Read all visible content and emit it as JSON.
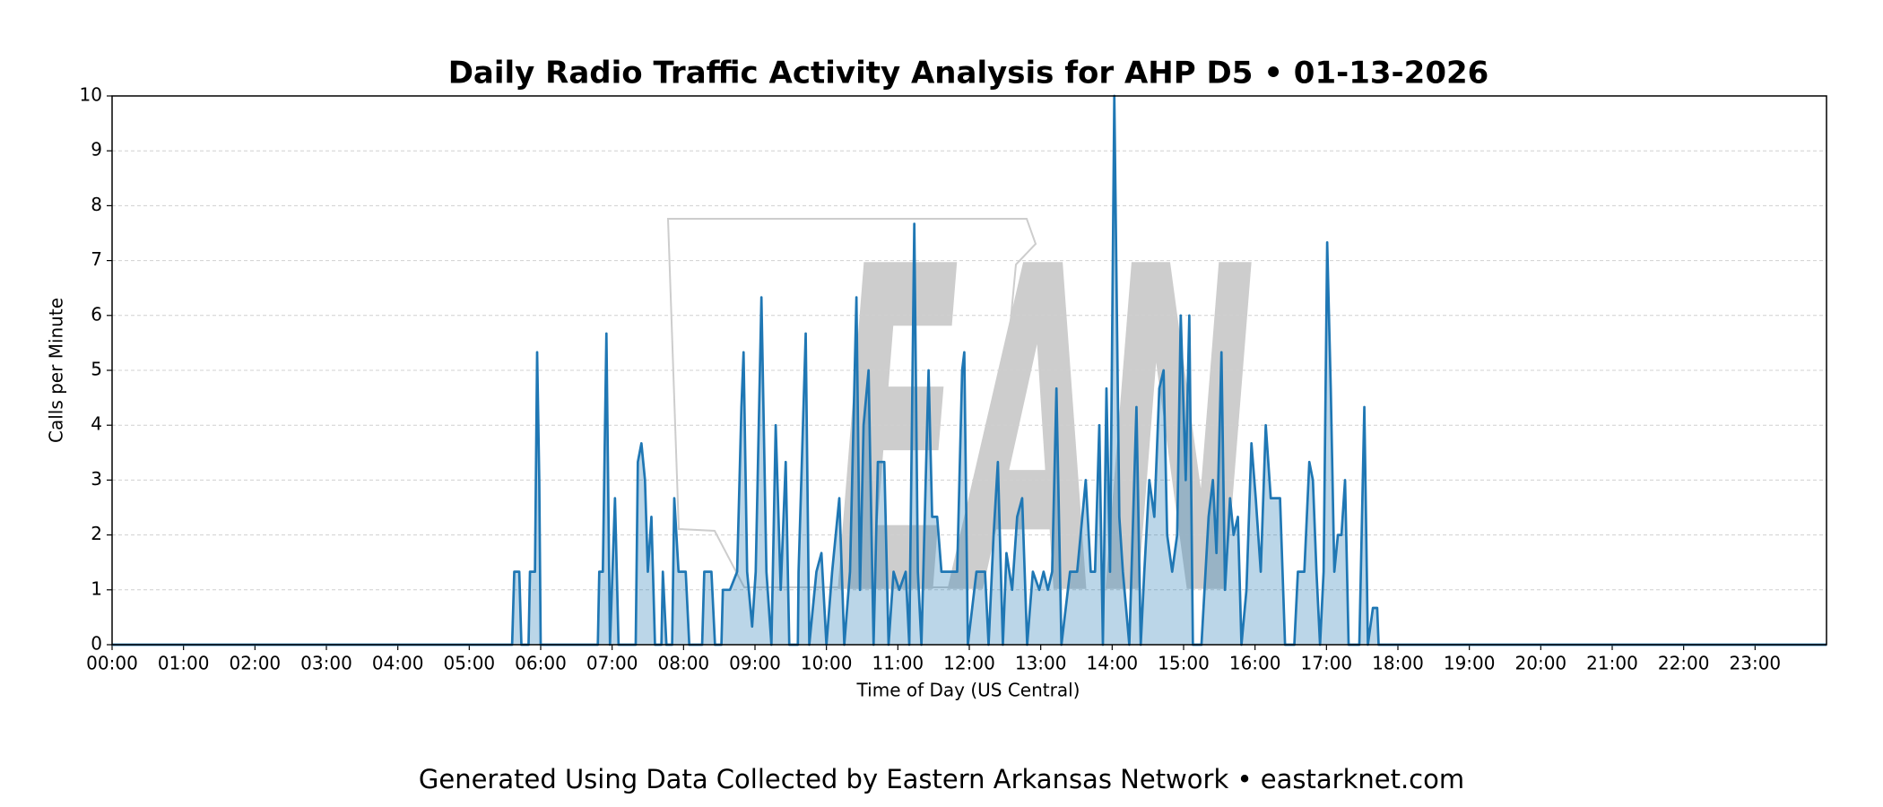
{
  "chart_data": {
    "type": "area",
    "title": "Daily Radio Traffic Activity Analysis for AHP D5 • 01-13-2026",
    "xlabel": "Time of Day (US Central)",
    "ylabel": "Calls per Minute",
    "footer": "Generated Using Data Collected by Eastern Arkansas Network • eastarknet.com",
    "watermark": "EAN",
    "color": "#1f77b4",
    "grid": true,
    "xlim": [
      0,
      24
    ],
    "ylim": [
      0,
      10
    ],
    "yticks": [
      0,
      1,
      2,
      3,
      4,
      5,
      6,
      7,
      8,
      9,
      10
    ],
    "xticks": [
      {
        "value": 0,
        "label": "00:00"
      },
      {
        "value": 1,
        "label": "01:00"
      },
      {
        "value": 2,
        "label": "02:00"
      },
      {
        "value": 3,
        "label": "03:00"
      },
      {
        "value": 4,
        "label": "04:00"
      },
      {
        "value": 5,
        "label": "05:00"
      },
      {
        "value": 6,
        "label": "06:00"
      },
      {
        "value": 7,
        "label": "07:00"
      },
      {
        "value": 8,
        "label": "08:00"
      },
      {
        "value": 9,
        "label": "09:00"
      },
      {
        "value": 10,
        "label": "10:00"
      },
      {
        "value": 11,
        "label": "11:00"
      },
      {
        "value": 12,
        "label": "12:00"
      },
      {
        "value": 13,
        "label": "13:00"
      },
      {
        "value": 14,
        "label": "14:00"
      },
      {
        "value": 15,
        "label": "15:00"
      },
      {
        "value": 16,
        "label": "16:00"
      },
      {
        "value": 17,
        "label": "17:00"
      },
      {
        "value": 18,
        "label": "18:00"
      },
      {
        "value": 19,
        "label": "19:00"
      },
      {
        "value": 20,
        "label": "20:00"
      },
      {
        "value": 21,
        "label": "21:00"
      },
      {
        "value": 22,
        "label": "22:00"
      },
      {
        "value": 23,
        "label": "23:00"
      }
    ],
    "x": [
      0,
      5.6,
      5.63,
      5.7,
      5.73,
      5.83,
      5.85,
      5.92,
      5.95,
      5.98,
      6.0,
      6.8,
      6.82,
      6.87,
      6.92,
      6.97,
      7.04,
      7.09,
      7.33,
      7.36,
      7.41,
      7.46,
      7.5,
      7.55,
      7.6,
      7.69,
      7.71,
      7.76,
      7.84,
      7.87,
      7.93,
      7.98,
      8.03,
      8.08,
      8.26,
      8.29,
      8.39,
      8.44,
      8.53,
      8.55,
      8.65,
      8.75,
      8.81,
      8.84,
      8.89,
      8.96,
      9.01,
      9.09,
      9.16,
      9.23,
      9.29,
      9.36,
      9.43,
      9.48,
      9.6,
      9.61,
      9.71,
      9.76,
      9.86,
      9.93,
      10.0,
      10.08,
      10.18,
      10.25,
      10.33,
      10.42,
      10.47,
      10.52,
      10.59,
      10.66,
      10.72,
      10.81,
      10.87,
      10.94,
      11.02,
      11.11,
      11.16,
      11.23,
      11.28,
      11.33,
      11.43,
      11.48,
      11.55,
      11.61,
      11.75,
      11.83,
      11.9,
      11.93,
      11.98,
      12.1,
      12.22,
      12.27,
      12.34,
      12.4,
      12.47,
      12.52,
      12.6,
      12.67,
      12.74,
      12.81,
      12.89,
      12.98,
      13.04,
      13.1,
      13.16,
      13.22,
      13.29,
      13.41,
      13.51,
      13.63,
      13.7,
      13.76,
      13.82,
      13.87,
      13.92,
      13.97,
      14.03,
      14.1,
      14.15,
      14.24,
      14.34,
      14.4,
      14.45,
      14.52,
      14.59,
      14.66,
      14.72,
      14.77,
      14.84,
      14.91,
      14.96,
      15.03,
      15.08,
      15.13,
      15.25,
      15.35,
      15.41,
      15.46,
      15.53,
      15.58,
      15.65,
      15.7,
      15.76,
      15.81,
      15.88,
      15.95,
      16.01,
      16.08,
      16.15,
      16.22,
      16.29,
      16.35,
      16.42,
      16.55,
      16.6,
      16.69,
      16.76,
      16.81,
      16.86,
      16.91,
      16.96,
      17.01,
      17.06,
      17.11,
      17.16,
      17.21,
      17.26,
      17.31,
      17.46,
      17.53,
      17.58,
      17.65,
      17.71,
      17.73,
      24
    ],
    "values": [
      0,
      0,
      1.33,
      1.33,
      0,
      0,
      1.33,
      1.33,
      5.33,
      3,
      0,
      0,
      1.33,
      1.33,
      5.67,
      0,
      2.67,
      0,
      0,
      3.33,
      3.67,
      3.0,
      1.33,
      2.33,
      0,
      0,
      1.33,
      0,
      0,
      2.67,
      1.33,
      1.33,
      1.33,
      0,
      0,
      1.33,
      1.33,
      0,
      0,
      1.0,
      1.0,
      1.33,
      4.33,
      5.33,
      1.33,
      0.33,
      1.33,
      6.33,
      1.33,
      0,
      4.0,
      1.0,
      3.33,
      0,
      0,
      1.33,
      5.67,
      0,
      1.33,
      1.67,
      0,
      1.33,
      2.67,
      0,
      1.33,
      6.33,
      1.0,
      4.0,
      5.0,
      0,
      3.33,
      3.33,
      0,
      1.33,
      1.0,
      1.33,
      0,
      7.67,
      1.33,
      0,
      5.0,
      2.33,
      2.33,
      1.33,
      1.33,
      1.33,
      5.0,
      5.33,
      0,
      1.33,
      1.33,
      0,
      2.0,
      3.33,
      0,
      1.67,
      1.0,
      2.33,
      2.67,
      0,
      1.33,
      1.0,
      1.33,
      1.0,
      1.33,
      4.67,
      0,
      1.33,
      1.33,
      3.0,
      1.33,
      1.33,
      4.0,
      0,
      4.67,
      1.33,
      10,
      2.33,
      1.33,
      0,
      4.33,
      0,
      1.33,
      3.0,
      2.33,
      4.67,
      5.0,
      2.0,
      1.33,
      2.0,
      6.0,
      3.0,
      6.0,
      0,
      0,
      2.33,
      3.0,
      1.67,
      5.33,
      1.0,
      2.67,
      2.0,
      2.33,
      0,
      1.0,
      3.67,
      2.67,
      1.33,
      4.0,
      2.67,
      2.67,
      2.67,
      0,
      0,
      1.33,
      1.33,
      3.33,
      3.0,
      1.33,
      0,
      1.33,
      7.33,
      4.67,
      1.33,
      2.0,
      2.0,
      3.0,
      0,
      0,
      4.33,
      0,
      0.67,
      0.67,
      0,
      0
    ]
  }
}
